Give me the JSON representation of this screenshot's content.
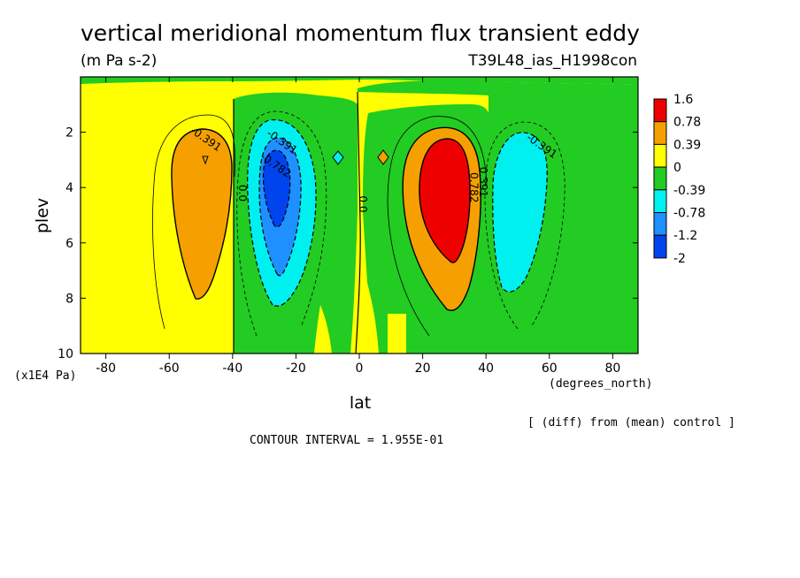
{
  "chart_data": {
    "type": "heatmap",
    "title": "vertical meridional momentum flux transient eddy",
    "units": "(m Pa s-2)",
    "run_label": "T39L48_ias_H1998con",
    "xlabel": "lat",
    "x_units": "(degrees_north)",
    "ylabel": "plev",
    "y_units": "(x1E4 Pa)",
    "xlim": [
      -88,
      88
    ],
    "ylim": [
      10,
      0
    ],
    "x_ticks": [
      "-80",
      "-60",
      "-40",
      "-20",
      "0",
      "20",
      "40",
      "60",
      "80"
    ],
    "y_ticks": [
      "2",
      "4",
      "6",
      "8",
      "10"
    ],
    "x_tick_values": [
      -80,
      -60,
      -40,
      -20,
      0,
      20,
      40,
      60,
      80
    ],
    "y_tick_values": [
      2,
      4,
      6,
      8,
      10
    ],
    "diff_note": "[ (diff) from (mean) control ]",
    "contour_interval": "CONTOUR INTERVAL = 1.955E-01",
    "colorbar": {
      "labels": [
        "1.6",
        "0.78",
        "0.39",
        "0",
        "-0.39",
        "-0.78",
        "-1.2",
        "-2"
      ],
      "colors": [
        "#ef0000",
        "#f5a000",
        "#ffff00",
        "#22cc22",
        "#00f0f0",
        "#1e90ff",
        "#0044ee"
      ]
    },
    "contour_labels": [
      {
        "text": "-0.391",
        "lat": -49,
        "plev": 2.35
      },
      {
        "text": "-0.391",
        "lat": -25,
        "plev": 2.45
      },
      {
        "text": "-0.782",
        "lat": -27,
        "plev": 3.3
      },
      {
        "text": "0.0",
        "lat": -38,
        "plev": 4.2
      },
      {
        "text": "0.0",
        "lat": 0,
        "plev": 4.6
      },
      {
        "text": "0.782",
        "lat": 35,
        "plev": 4.0
      },
      {
        "text": "0.391",
        "lat": 38,
        "plev": 3.8
      },
      {
        "text": "-0.391",
        "lat": 57,
        "plev": 2.6
      }
    ],
    "field_extrema": [
      {
        "lat": -52,
        "plev": 3.5,
        "sign": "positive",
        "level": "0.39"
      },
      {
        "lat": -30,
        "plev": 4.0,
        "sign": "negative",
        "level": "-1.2"
      },
      {
        "lat": 28,
        "plev": 4.0,
        "sign": "positive",
        "level": "1.6"
      },
      {
        "lat": 50,
        "plev": 4.5,
        "sign": "negative",
        "level": "-0.78"
      }
    ]
  }
}
